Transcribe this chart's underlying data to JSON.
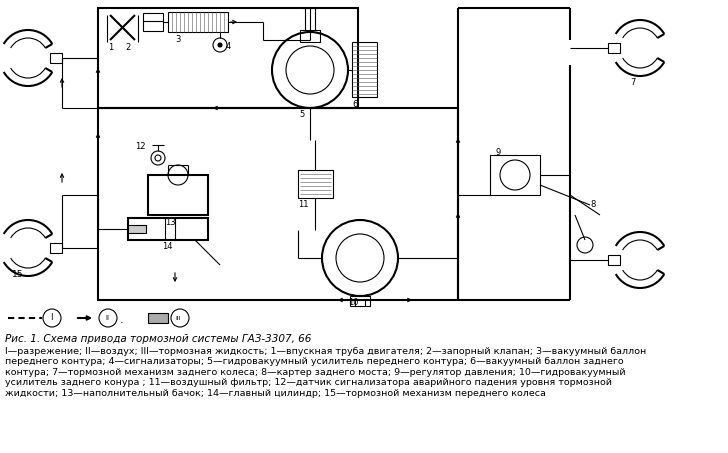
{
  "title": "Рис. 1. Схема привода тормозной системы ГАЗ-3307, 66",
  "caption": "I—разрежение; II—воздух; III—тормозная жидкость; 1—впускная труба двигателя; 2—запорный клапан; 3—вакуумный баллон\nпереднего контура; 4—сигнализаторы; 5—гидровакуумный усилитель переднего контура; 6—вакуумный баллон заднего\nконтура; 7—тормозной механизм заднего колеса; 8—картер заднего моста; 9—регулятор давления; 10—гидровакуумный\nусилитель заднего конура ; 11—воздушный фильтр; 12—датчик сигнализатора аварийного падения уровня тормозной\nжидкости; 13—наполнительный бачок; 14—главный цилиндр; 15—тормозной механизм переднего колеса",
  "bg_color": "#ffffff",
  "text_color": "#000000",
  "fig_width": 7.28,
  "fig_height": 4.53,
  "dpi": 100
}
